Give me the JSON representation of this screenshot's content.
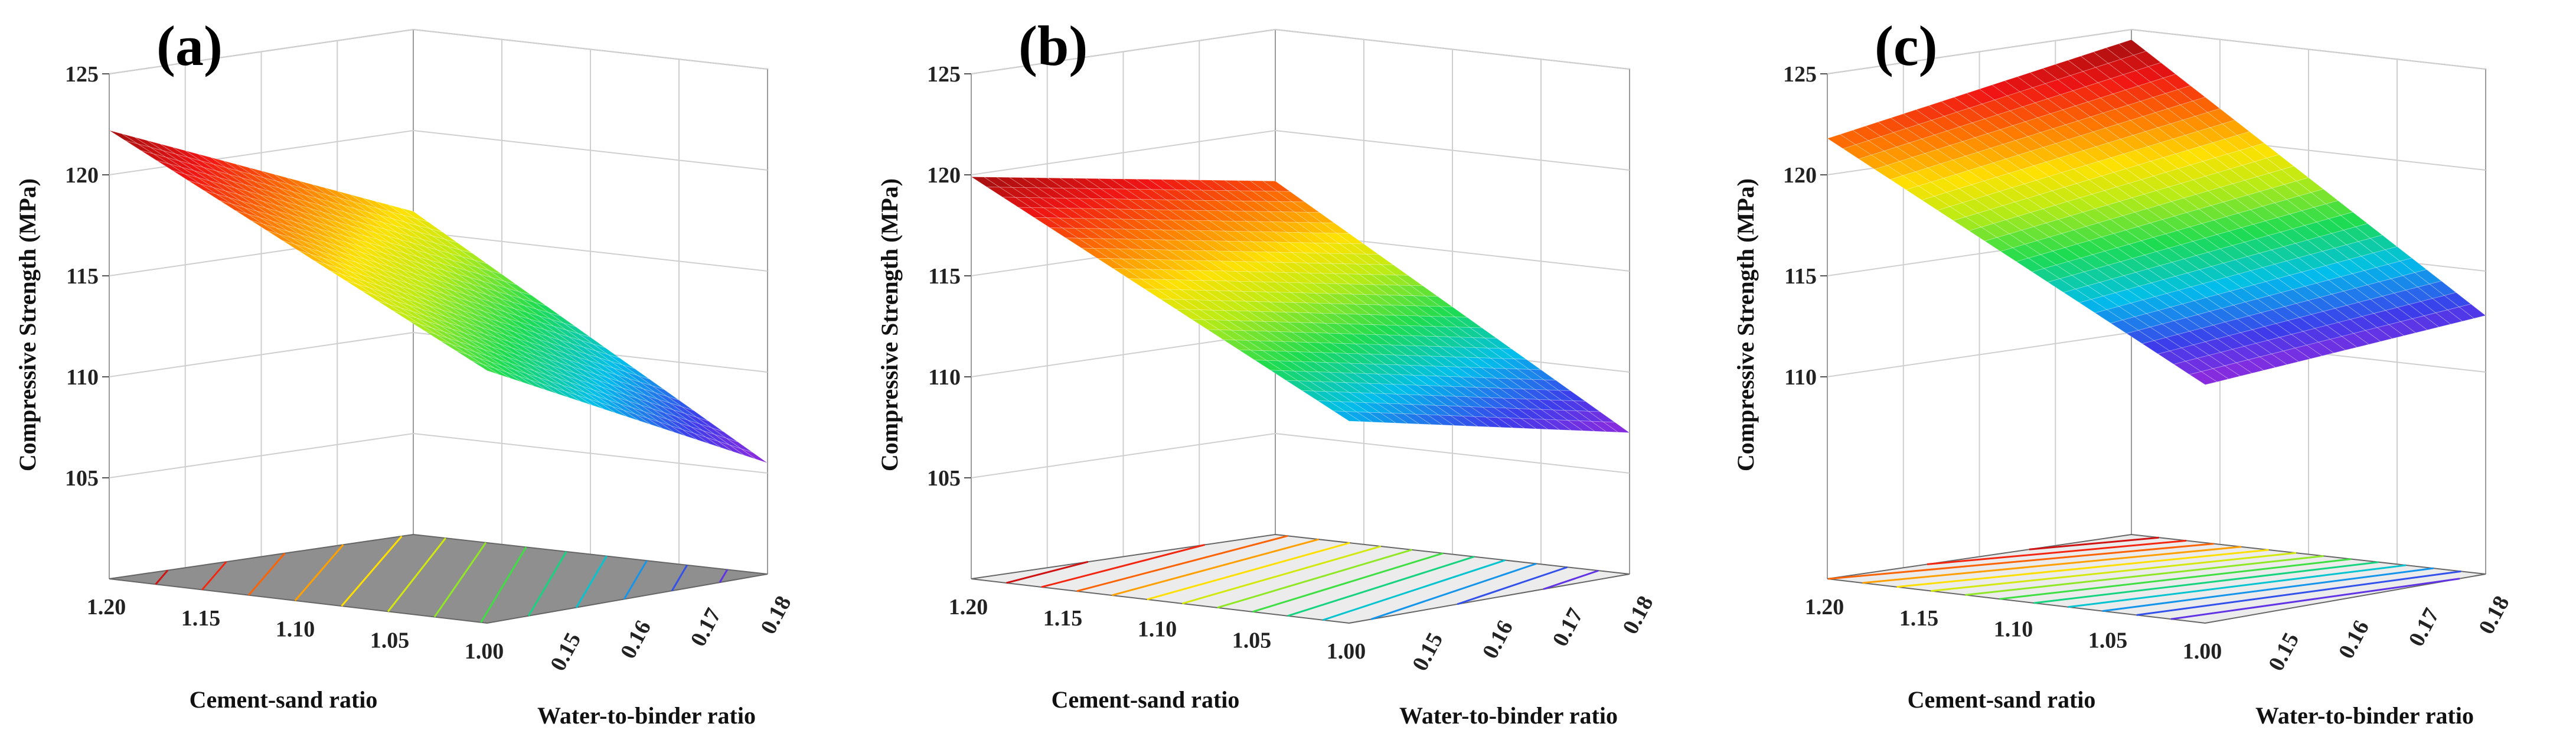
{
  "chart_data": [
    {
      "type": "surface3d",
      "panel_label": "(a)",
      "zlabel": "Compressive Strength (MPa)",
      "xlabel": "Cement-sand ratio",
      "ylabel": "Water-to-binder ratio",
      "x_ticks": [
        "1.20",
        "1.15",
        "1.10",
        "1.05",
        "1.00"
      ],
      "y_ticks": [
        "0.15",
        "0.16",
        "0.17",
        "0.18"
      ],
      "z_ticks": [
        "125",
        "120",
        "115",
        "110",
        "105"
      ],
      "x_range": [
        1.0,
        1.2
      ],
      "y_range": [
        0.14,
        0.18
      ],
      "z_range": [
        100,
        125
      ],
      "surface_corners": {
        "cs1.20_wb0.14": 122.2,
        "cs1.00_wb0.14": 112.5,
        "cs1.20_wb0.18": 116.0,
        "cs1.00_wb0.18": 105.5
      },
      "zmin": 105.5,
      "zmax": 122.2
    },
    {
      "type": "surface3d",
      "panel_label": "(b)",
      "zlabel": "Compressive Strength (MPa)",
      "xlabel": "Cement-sand ratio",
      "ylabel": "Water-to-binder ratio",
      "x_ticks": [
        "1.20",
        "1.15",
        "1.10",
        "1.05",
        "1.00"
      ],
      "y_ticks": [
        "0.15",
        "0.16",
        "0.17",
        "0.18"
      ],
      "z_ticks": [
        "125",
        "120",
        "115",
        "110",
        "105"
      ],
      "x_range": [
        1.0,
        1.2
      ],
      "y_range": [
        0.14,
        0.18
      ],
      "z_range": [
        100,
        125
      ],
      "surface_corners": {
        "cs1.20_wb0.14": 119.9,
        "cs1.00_wb0.14": 110.0,
        "cs1.20_wb0.18": 117.5,
        "cs1.00_wb0.18": 107.0
      },
      "zmin": 107.0,
      "zmax": 119.9
    },
    {
      "type": "surface3d",
      "panel_label": "(c)",
      "zlabel": "Compressive Strength (MPa)",
      "xlabel": "Cement-sand ratio",
      "ylabel": "Water-to-binder ratio",
      "x_ticks": [
        "1.20",
        "1.15",
        "1.10",
        "1.05",
        "1.00"
      ],
      "y_ticks": [
        "0.15",
        "0.16",
        "0.17",
        "0.18"
      ],
      "z_ticks": [
        "125",
        "120",
        "115",
        "110"
      ],
      "x_range": [
        1.0,
        1.2
      ],
      "y_range": [
        0.14,
        0.18
      ],
      "z_range": [
        100,
        125
      ],
      "surface_corners": {
        "cs1.20_wb0.14": 121.8,
        "cs1.00_wb0.14": 111.8,
        "cs1.20_wb0.18": 124.5,
        "cs1.00_wb0.18": 112.8
      },
      "zmin": 111.8,
      "zmax": 124.5
    }
  ]
}
